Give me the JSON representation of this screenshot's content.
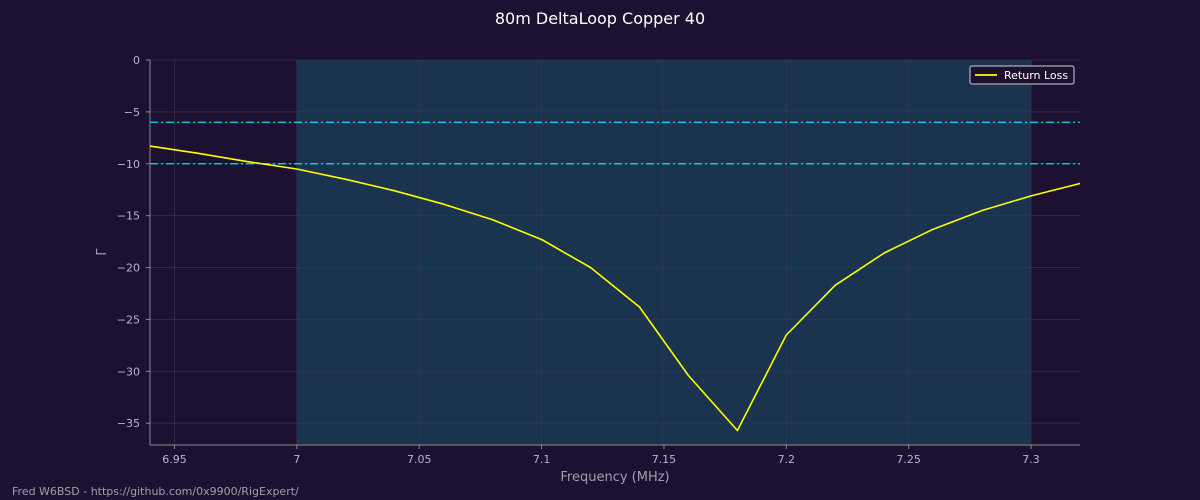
{
  "chart_data": {
    "type": "line",
    "title": "80m DeltaLoop Copper 40",
    "xlabel": "Frequency (MHz)",
    "ylabel": "Γ",
    "xlim": [
      6.94,
      7.32
    ],
    "ylim": [
      -37.1,
      0
    ],
    "x_ticks": [
      6.95,
      7.0,
      7.05,
      7.1,
      7.15,
      7.2,
      7.25,
      7.3
    ],
    "x_tick_labels": [
      "6.95",
      "7",
      "7.05",
      "7.1",
      "7.15",
      "7.2",
      "7.25",
      "7.3"
    ],
    "y_ticks": [
      0,
      -5,
      -10,
      -15,
      -20,
      -25,
      -30,
      -35
    ],
    "y_tick_labels": [
      "0",
      "−5",
      "−10",
      "−15",
      "−20",
      "−25",
      "−30",
      "−35"
    ],
    "grid": true,
    "legend_position": "top-right",
    "band": {
      "start": 7.0,
      "end": 7.3
    },
    "reference_lines": [
      -6,
      -10
    ],
    "series": [
      {
        "name": "Return Loss",
        "color": "#ffff00",
        "x": [
          6.94,
          6.96,
          6.98,
          7.0,
          7.02,
          7.04,
          7.06,
          7.08,
          7.1,
          7.12,
          7.14,
          7.16,
          7.18,
          7.2,
          7.22,
          7.24,
          7.26,
          7.28,
          7.3,
          7.32
        ],
        "y": [
          -8.3,
          -9.0,
          -9.8,
          -10.5,
          -11.5,
          -12.6,
          -13.9,
          -15.4,
          -17.3,
          -20.0,
          -23.8,
          -30.4,
          -35.7,
          -26.5,
          -21.7,
          -18.6,
          -16.3,
          -14.5,
          -13.1,
          -11.9
        ]
      }
    ]
  },
  "colors": {
    "background": "#1c1130",
    "band": "#1a3650",
    "reference_line": "#00e5ff",
    "grid": "#3a3552",
    "axis": "#8a8a8a",
    "text": "#b8b8c0",
    "title": "#ffffff"
  },
  "footer": {
    "credit": "Fred W6BSD - https://github.com/0x9900/RigExpert/"
  }
}
